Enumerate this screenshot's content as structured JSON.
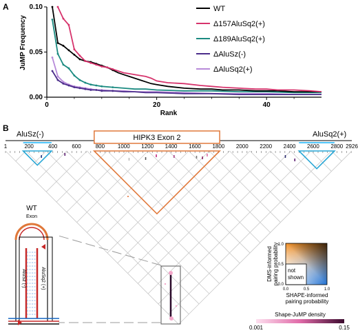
{
  "panel_a_label": "A",
  "panel_b_label": "B",
  "chart_data": {
    "type": "line",
    "xlabel": "Rank",
    "ylabel": "JuMP Frequency",
    "xlim": [
      0,
      50
    ],
    "ylim": [
      0,
      0.1
    ],
    "xticks": [
      0,
      20,
      40
    ],
    "yticks": [
      0.0,
      0.05,
      0.1
    ],
    "ytick_labels": [
      "0.00",
      "0.05",
      "0.10"
    ],
    "legend_position": "right",
    "series": [
      {
        "name": "WT",
        "color": "#000000",
        "x": [
          1,
          2,
          3,
          4,
          5,
          6,
          7,
          8,
          9,
          10,
          11,
          12,
          13,
          14,
          15,
          16,
          17,
          18,
          19,
          20,
          22,
          25,
          28,
          30,
          32,
          35,
          38,
          40,
          42,
          45,
          48,
          50
        ],
        "y": [
          0.1,
          0.06,
          0.057,
          0.052,
          0.047,
          0.042,
          0.04,
          0.039,
          0.037,
          0.035,
          0.033,
          0.03,
          0.027,
          0.025,
          0.023,
          0.021,
          0.019,
          0.017,
          0.015,
          0.014,
          0.012,
          0.01,
          0.009,
          0.009,
          0.008,
          0.008,
          0.007,
          0.007,
          0.007,
          0.006,
          0.006,
          0.006
        ]
      },
      {
        "name": "Δ157AluSq2(+)",
        "color": "#d6336c",
        "x": [
          2,
          3,
          4,
          5,
          6,
          7,
          8,
          9,
          10,
          11,
          12,
          13,
          14,
          15,
          16,
          17,
          18,
          19,
          20,
          22,
          25,
          28,
          30,
          32,
          35,
          38,
          40,
          42,
          45,
          48,
          50
        ],
        "y": [
          0.1,
          0.087,
          0.08,
          0.053,
          0.046,
          0.04,
          0.038,
          0.036,
          0.034,
          0.033,
          0.031,
          0.029,
          0.027,
          0.026,
          0.025,
          0.024,
          0.023,
          0.021,
          0.018,
          0.016,
          0.015,
          0.013,
          0.012,
          0.011,
          0.01,
          0.009,
          0.009,
          0.008,
          0.008,
          0.007,
          0.006
        ]
      },
      {
        "name": "Δ189AluSq2(+)",
        "color": "#1a8a80",
        "x": [
          1,
          2,
          3,
          4,
          5,
          6,
          7,
          8,
          9,
          10,
          12,
          14,
          16,
          18,
          20,
          25,
          30,
          35,
          40,
          45,
          50
        ],
        "y": [
          0.086,
          0.048,
          0.036,
          0.032,
          0.024,
          0.019,
          0.016,
          0.014,
          0.013,
          0.012,
          0.011,
          0.01,
          0.009,
          0.009,
          0.008,
          0.007,
          0.007,
          0.006,
          0.006,
          0.005,
          0.005
        ]
      },
      {
        "name": "ΔAluSz(-)",
        "color": "#4a2c8a",
        "x": [
          1,
          2,
          3,
          4,
          5,
          6,
          7,
          8,
          9,
          10,
          12,
          14,
          16,
          18,
          20,
          25,
          30,
          35,
          40,
          45,
          50
        ],
        "y": [
          0.029,
          0.019,
          0.015,
          0.013,
          0.011,
          0.01,
          0.009,
          0.008,
          0.008,
          0.007,
          0.007,
          0.006,
          0.006,
          0.005,
          0.005,
          0.004,
          0.004,
          0.003,
          0.003,
          0.003,
          0.003
        ]
      },
      {
        "name": "ΔAluSq2(+)",
        "color": "#b78ad9",
        "x": [
          1,
          2,
          3,
          4,
          5,
          6,
          7,
          8,
          9,
          10,
          12,
          14,
          16,
          18,
          20,
          25,
          30,
          35,
          40,
          45,
          50
        ],
        "y": [
          0.044,
          0.023,
          0.017,
          0.014,
          0.012,
          0.011,
          0.01,
          0.009,
          0.008,
          0.008,
          0.007,
          0.007,
          0.006,
          0.006,
          0.006,
          0.005,
          0.004,
          0.004,
          0.004,
          0.003,
          0.003
        ]
      }
    ]
  },
  "panel_b": {
    "left_region_label": "AluSz(-)",
    "exon_label": "HIPK3 Exon 2",
    "right_region_label": "AluSq2(+)",
    "axis_ticks": [
      "1",
      "200",
      "400",
      "600",
      "800",
      "1000",
      "1200",
      "1400",
      "1600",
      "1800",
      "2000",
      "2200",
      "2400",
      "2600",
      "2800",
      "2926"
    ],
    "axis_tick_values": [
      1,
      200,
      400,
      600,
      800,
      1000,
      1200,
      1400,
      1600,
      1800,
      2000,
      2200,
      2400,
      2600,
      2800,
      2926
    ],
    "axis_max": 2926,
    "exon_range": [
      750,
      1810
    ],
    "alusz_range": [
      150,
      390
    ],
    "alusq2_range": [
      2480,
      2780
    ],
    "inset": {
      "title": "WT",
      "exon_label": "Exon",
      "left_label": "AluSz (-)",
      "right_label": "AluSq2 (+)"
    },
    "color_square": {
      "y_label_line1": "DMS-informed",
      "y_label_line2": "pairing probability",
      "x_label_line1": "SHAPE-informed",
      "x_label_line2": "pairing probability",
      "ticks": [
        "0.0",
        "0.5",
        "1.0"
      ],
      "not_shown_label_line1": "not",
      "not_shown_label_line2": "shown"
    },
    "density_legend": {
      "title": "Shape-JuMP density",
      "min_label": "0.001",
      "max_label": "0.15"
    }
  },
  "colors": {
    "orange": "#e0783a",
    "cyan": "#29a7d6",
    "alu_bar": "#4fc3f7",
    "grid": "#c8c8c8",
    "magenta": "#c0267d"
  }
}
